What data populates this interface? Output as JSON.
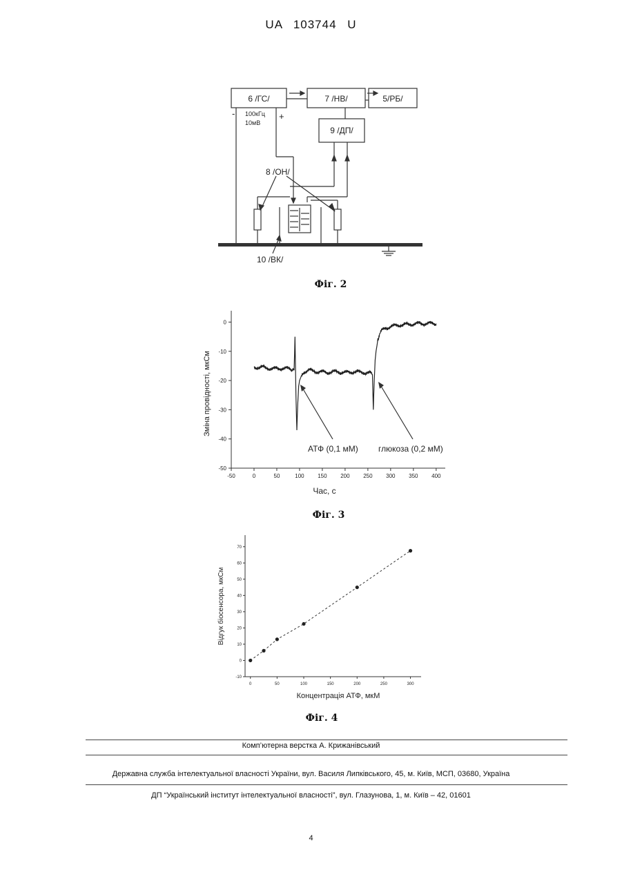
{
  "header": {
    "patent_id": "UA   103744   U"
  },
  "fig2": {
    "caption": "Фіг. 2",
    "blocks": {
      "gs": "6 /ГС/",
      "nv": "7 /НВ/",
      "rb": "5/РБ/",
      "dp": "9 /ДП/"
    },
    "labels": {
      "freq": "100кГц",
      "volt": "10мВ",
      "minus": "-",
      "plus": "+",
      "on": "8 /ОН/",
      "vk": "10 /ВК/"
    }
  },
  "fig3": {
    "caption": "Фіг. 3",
    "annotation_atp": "АТФ (0,1 мМ)",
    "annotation_glucose": "глюкоза (0,2 мМ)",
    "chart_data": {
      "type": "line",
      "xlabel": "Час, с",
      "ylabel": "Зміна провідності, мкСм",
      "xlim": [
        -50,
        420
      ],
      "ylim": [
        -50,
        2
      ],
      "xticks": [
        -50,
        0,
        50,
        100,
        150,
        200,
        250,
        300,
        350,
        400
      ],
      "xtick_labels": [
        "-50",
        "0",
        "50",
        "100",
        "150",
        "200",
        "250",
        "300",
        "350",
        "400"
      ],
      "yticks": [
        0,
        -10,
        -20,
        -30,
        -40,
        -50
      ],
      "ytick_labels": [
        "0",
        "-10",
        "-20",
        "-30",
        "-40",
        "-50"
      ],
      "series": [
        {
          "x": [
            0,
            20,
            40,
            60,
            80,
            88,
            90,
            92,
            94,
            96,
            98,
            100,
            105,
            110,
            120,
            140,
            160,
            180,
            200,
            220,
            240,
            255,
            260,
            262,
            264,
            266,
            268,
            270,
            272,
            275,
            280,
            290,
            300,
            320,
            340,
            360,
            380,
            400
          ],
          "y": [
            -15.5,
            -15.5,
            -16,
            -15.8,
            -16,
            -16.5,
            -5,
            -25,
            -37,
            -28,
            -22,
            -20,
            -18,
            -17,
            -16.5,
            -17,
            -17.2,
            -17,
            -17.3,
            -17,
            -17.2,
            -17.5,
            -18,
            -30,
            -20,
            -13,
            -10,
            -8,
            -6,
            -4.5,
            -3,
            -2,
            -1.5,
            -1,
            -0.8,
            -0.5,
            -0.5,
            -0.5
          ]
        }
      ]
    }
  },
  "fig4": {
    "caption": "Фіг. 4",
    "chart_data": {
      "type": "scatter",
      "xlabel": "Концентрація АТФ, мкМ",
      "ylabel": "Відгук біосенсора, мкСм",
      "xlim": [
        -10,
        320
      ],
      "ylim": [
        -10,
        75
      ],
      "xticks": [
        0,
        50,
        100,
        150,
        200,
        250,
        300
      ],
      "xtick_labels": [
        "0",
        "50",
        "100",
        "150",
        "200",
        "250",
        "300"
      ],
      "yticks": [
        -10,
        0,
        10,
        20,
        30,
        40,
        50,
        60,
        70
      ],
      "ytick_labels": [
        "-10",
        "0",
        "10",
        "20",
        "30",
        "40",
        "50",
        "60",
        "70"
      ],
      "series": [
        {
          "x": [
            0,
            25,
            50,
            100,
            200,
            300
          ],
          "y": [
            0,
            6,
            13,
            22.5,
            45,
            67.5
          ]
        }
      ],
      "trendline": "dashed"
    }
  },
  "footer": {
    "typesetting": "Комп’ютерна верстка А. Крижанівський",
    "agency": "Державна служба інтелектуальної власності України, вул. Василя Липківського, 45, м. Київ, МСП, 03680, Україна",
    "institute": "ДП “Український інститут інтелектуальної власності”, вул. Глазунова, 1, м. Київ – 42, 01601",
    "page_number": "4"
  }
}
